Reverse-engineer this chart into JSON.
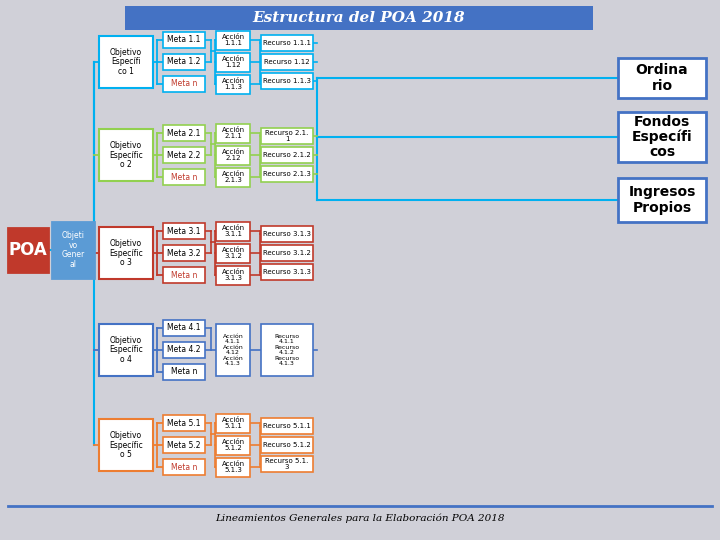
{
  "title": "Estructura del POA 2018",
  "footer": "Lineamientos Generales para la Elaboración POA 2018",
  "bg_color": "#d0d0d8",
  "header_color": "#4472c4",
  "poa_box": {
    "text": "POA",
    "fill": "#c0392b",
    "edge": "#c0392b",
    "text_color": "white"
  },
  "obj_gen_box": {
    "text": "Objeti\nvo\nGener\nal",
    "fill": "#5b9bd5",
    "edge": "#5b9bd5",
    "text_color": "white"
  },
  "obj_esp": [
    {
      "text": "Objetivo\nEspecífi\nco 1",
      "fill": "white",
      "edge": "#00b0f0",
      "text_color": "black",
      "metas": [
        {
          "text": "Meta 1.1",
          "fill": "white",
          "edge": "#00b0f0",
          "text_color": "black"
        },
        {
          "text": "Meta 1.2",
          "fill": "white",
          "edge": "#00b0f0",
          "text_color": "black"
        },
        {
          "text": "Meta n",
          "fill": "white",
          "edge": "#00b0f0",
          "text_color": "#c0392b"
        }
      ],
      "acciones": [
        {
          "text": "Acción\n1.1.1",
          "fill": "white",
          "edge": "#00b0f0"
        },
        {
          "text": "Acción\n1.12",
          "fill": "white",
          "edge": "#00b0f0"
        },
        {
          "text": "Acción\n1.1.3",
          "fill": "white",
          "edge": "#00b0f0"
        }
      ],
      "recursos": [
        {
          "text": "Recurso 1.1.1",
          "fill": "white",
          "edge": "#00b0f0"
        },
        {
          "text": "Recurso 1.12",
          "fill": "white",
          "edge": "#00b0f0"
        },
        {
          "text": "Recurso 1.1.3",
          "fill": "white",
          "edge": "#00b0f0"
        }
      ],
      "line_color": "#00b0f0"
    },
    {
      "text": "Objetivo\nEspecífic\no 2",
      "fill": "white",
      "edge": "#92d050",
      "text_color": "black",
      "metas": [
        {
          "text": "Meta 2.1",
          "fill": "white",
          "edge": "#92d050",
          "text_color": "black"
        },
        {
          "text": "Meta 2.2",
          "fill": "white",
          "edge": "#92d050",
          "text_color": "black"
        },
        {
          "text": "Meta n",
          "fill": "white",
          "edge": "#92d050",
          "text_color": "#c0392b"
        }
      ],
      "acciones": [
        {
          "text": "Acción\n2.1.1",
          "fill": "white",
          "edge": "#92d050"
        },
        {
          "text": "Acción\n2.12",
          "fill": "white",
          "edge": "#92d050"
        },
        {
          "text": "Acción\n2.1.3",
          "fill": "white",
          "edge": "#92d050"
        }
      ],
      "recursos": [
        {
          "text": "Recurso 2.1.\n1",
          "fill": "white",
          "edge": "#92d050"
        },
        {
          "text": "Recurso 2.1.2",
          "fill": "white",
          "edge": "#92d050"
        },
        {
          "text": "Recurso 2.1.3",
          "fill": "white",
          "edge": "#92d050"
        }
      ],
      "line_color": "#92d050"
    },
    {
      "text": "Objetivo\nEspecífic\no 3",
      "fill": "white",
      "edge": "#c0392b",
      "text_color": "black",
      "metas": [
        {
          "text": "Meta 3.1",
          "fill": "white",
          "edge": "#c0392b",
          "text_color": "black"
        },
        {
          "text": "Meta 3.2",
          "fill": "white",
          "edge": "#c0392b",
          "text_color": "black"
        },
        {
          "text": "Meta n",
          "fill": "white",
          "edge": "#c0392b",
          "text_color": "#c0392b"
        }
      ],
      "acciones": [
        {
          "text": "Acción\n3.1.1",
          "fill": "white",
          "edge": "#c0392b"
        },
        {
          "text": "Acción\n3.1.2",
          "fill": "white",
          "edge": "#c0392b"
        },
        {
          "text": "Acción\n3.1.3",
          "fill": "white",
          "edge": "#c0392b"
        }
      ],
      "recursos": [
        {
          "text": "Recurso 3.1.3",
          "fill": "white",
          "edge": "#c0392b"
        },
        {
          "text": "Recurso 3.1.2",
          "fill": "white",
          "edge": "#c0392b"
        },
        {
          "text": "Recurso 3.1.3",
          "fill": "white",
          "edge": "#c0392b"
        }
      ],
      "line_color": "#c0392b"
    },
    {
      "text": "Objetivo\nEspecífic\no 4",
      "fill": "white",
      "edge": "#4472c4",
      "text_color": "black",
      "metas": [
        {
          "text": "Meta 4.1",
          "fill": "white",
          "edge": "#4472c4",
          "text_color": "black"
        },
        {
          "text": "Meta 4.2",
          "fill": "white",
          "edge": "#4472c4",
          "text_color": "black"
        },
        {
          "text": "Meta n",
          "fill": "white",
          "edge": "#4472c4",
          "text_color": "black"
        }
      ],
      "acc_text": "Acción\n4.1.1\nAcción\n4.12\nAcción\n4.1.3",
      "rec_text": "Recurso\n4.1.1\nRecurso\n4.1.2\nRecurso\n4.1.3",
      "acc_edge": "#4472c4",
      "rec_edge": "#4472c4",
      "line_color": "#4472c4"
    },
    {
      "text": "Objetivo\nEspecífic\no 5",
      "fill": "white",
      "edge": "#ed7d31",
      "text_color": "black",
      "metas": [
        {
          "text": "Meta 5.1",
          "fill": "white",
          "edge": "#ed7d31",
          "text_color": "black"
        },
        {
          "text": "Meta 5.2",
          "fill": "white",
          "edge": "#ed7d31",
          "text_color": "black"
        },
        {
          "text": "Meta n",
          "fill": "white",
          "edge": "#ed7d31",
          "text_color": "#c0392b"
        }
      ],
      "acciones": [
        {
          "text": "Acción\n5.1.1",
          "fill": "white",
          "edge": "#ed7d31"
        },
        {
          "text": "Acción\n5.1.2",
          "fill": "white",
          "edge": "#ed7d31"
        },
        {
          "text": "Acción\n5.1.3",
          "fill": "white",
          "edge": "#ed7d31"
        }
      ],
      "recursos": [
        {
          "text": "Recurso 5.1.1",
          "fill": "white",
          "edge": "#ed7d31"
        },
        {
          "text": "Recurso 5.1.2",
          "fill": "white",
          "edge": "#ed7d31"
        },
        {
          "text": "Recurso 5.1.\n3",
          "fill": "white",
          "edge": "#ed7d31"
        }
      ],
      "line_color": "#ed7d31"
    }
  ],
  "right_boxes": [
    {
      "text": "Ordina\nrio",
      "fill": "white",
      "edge": "#4472c4",
      "text_color": "black"
    },
    {
      "text": "Fondos\nEspecífi\ncos",
      "fill": "white",
      "edge": "#4472c4",
      "text_color": "black"
    },
    {
      "text": "Ingresos\nPropios",
      "fill": "white",
      "edge": "#4472c4",
      "text_color": "black"
    }
  ]
}
